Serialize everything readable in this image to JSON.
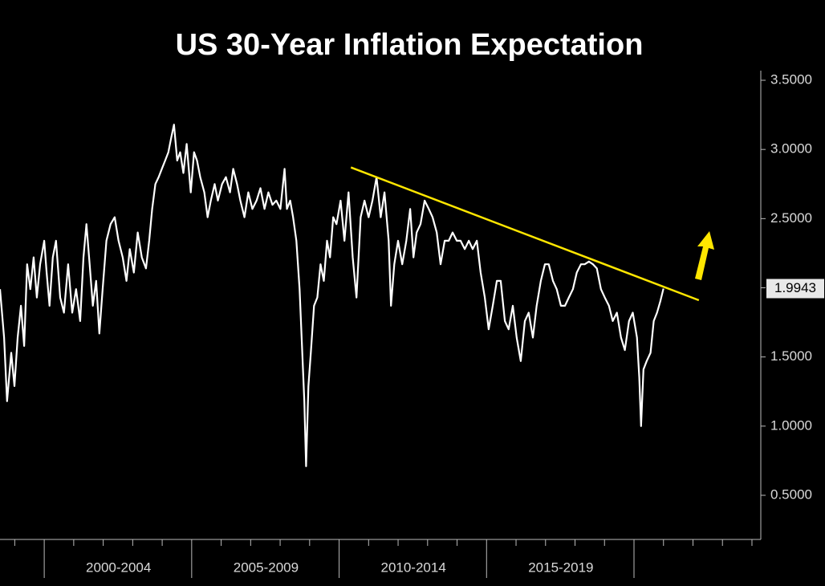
{
  "chart_data": {
    "type": "line",
    "title": "US 30-Year Inflation Expectation",
    "color": "#ffffff",
    "xlim": [
      1998.5,
      2024.3
    ],
    "ylim": [
      0.2,
      3.6
    ],
    "xticks": [
      2000,
      2005,
      2010,
      2015,
      2020
    ],
    "xticks_minor": [
      1999,
      2001,
      2002,
      2003,
      2004,
      2006,
      2007,
      2008,
      2009,
      2011,
      2012,
      2013,
      2014,
      2016,
      2017,
      2018,
      2019,
      2021,
      2022,
      2023,
      2024
    ],
    "period_labels": [
      {
        "value": 2002.52,
        "label": "2000-2004"
      },
      {
        "value": 2007.52,
        "label": "2005-2009"
      },
      {
        "value": 2012.52,
        "label": "2010-2014"
      },
      {
        "value": 2017.52,
        "label": "2015-2019"
      }
    ],
    "yticks": [
      {
        "value": 0.5,
        "label": "0.5000"
      },
      {
        "value": 1,
        "label": "1.0000"
      },
      {
        "value": 1.5,
        "label": "1.5000"
      },
      {
        "value": 2,
        "label": "2.0000"
      },
      {
        "value": 2.5,
        "label": "2.5000"
      },
      {
        "value": 3,
        "label": "3.0000"
      },
      {
        "value": 3.5,
        "label": "3.5000"
      }
    ],
    "x": [
      1998.5,
      1998.64,
      1998.74,
      1998.88,
      1998.99,
      1999.1,
      1999.21,
      1999.32,
      1999.42,
      1999.53,
      1999.64,
      1999.75,
      1999.86,
      2000.0,
      2000.08,
      2000.18,
      2000.29,
      2000.4,
      2000.54,
      2000.67,
      2000.81,
      2000.95,
      2001.08,
      2001.22,
      2001.33,
      2001.43,
      2001.54,
      2001.65,
      2001.76,
      2001.87,
      2001.98,
      2002.11,
      2002.25,
      2002.39,
      2002.52,
      2002.66,
      2002.79,
      2002.9,
      2003.04,
      2003.17,
      2003.31,
      2003.45,
      2003.56,
      2003.66,
      2003.77,
      2003.88,
      2003.99,
      2004.1,
      2004.21,
      2004.31,
      2004.4,
      2004.51,
      2004.61,
      2004.72,
      2004.83,
      2004.97,
      2005.08,
      2005.18,
      2005.29,
      2005.43,
      2005.54,
      2005.65,
      2005.78,
      2005.89,
      2006.03,
      2006.16,
      2006.3,
      2006.41,
      2006.54,
      2006.65,
      2006.79,
      2006.92,
      2007.06,
      2007.2,
      2007.33,
      2007.47,
      2007.6,
      2007.74,
      2007.87,
      2008.01,
      2008.15,
      2008.23,
      2008.34,
      2008.44,
      2008.55,
      2008.66,
      2008.74,
      2008.82,
      2008.88,
      2008.96,
      2009.04,
      2009.15,
      2009.26,
      2009.37,
      2009.48,
      2009.59,
      2009.69,
      2009.8,
      2009.91,
      2010.05,
      2010.18,
      2010.32,
      2010.46,
      2010.59,
      2010.73,
      2010.86,
      2011.0,
      2011.13,
      2011.27,
      2011.41,
      2011.54,
      2011.68,
      2011.76,
      2011.87,
      2012.0,
      2012.14,
      2012.28,
      2012.41,
      2012.52,
      2012.63,
      2012.76,
      2012.9,
      2013.04,
      2013.17,
      2013.31,
      2013.44,
      2013.58,
      2013.72,
      2013.85,
      2013.99,
      2014.12,
      2014.26,
      2014.4,
      2014.53,
      2014.67,
      2014.8,
      2014.94,
      2015.07,
      2015.21,
      2015.35,
      2015.48,
      2015.62,
      2015.75,
      2015.89,
      2016.02,
      2016.16,
      2016.3,
      2016.43,
      2016.57,
      2016.7,
      2016.84,
      2016.98,
      2017.11,
      2017.25,
      2017.38,
      2017.52,
      2017.66,
      2017.79,
      2017.93,
      2018.06,
      2018.2,
      2018.33,
      2018.47,
      2018.61,
      2018.74,
      2018.88,
      2019.01,
      2019.15,
      2019.28,
      2019.42,
      2019.56,
      2019.69,
      2019.83,
      2019.96,
      2020.1,
      2020.18,
      2020.24,
      2020.32,
      2020.43,
      2020.56,
      2020.67,
      2020.78,
      2020.89,
      2021.0
    ],
    "values": [
      1.99,
      1.64,
      1.18,
      1.53,
      1.29,
      1.64,
      1.87,
      1.58,
      2.17,
      1.99,
      2.22,
      1.93,
      2.17,
      2.34,
      2.11,
      1.87,
      2.22,
      2.34,
      1.93,
      1.82,
      2.17,
      1.82,
      1.99,
      1.76,
      2.22,
      2.46,
      2.17,
      1.87,
      2.05,
      1.67,
      1.99,
      2.34,
      2.46,
      2.51,
      2.34,
      2.22,
      2.05,
      2.28,
      2.11,
      2.4,
      2.22,
      2.14,
      2.34,
      2.57,
      2.75,
      2.8,
      2.86,
      2.92,
      2.98,
      3.09,
      3.18,
      2.92,
      2.98,
      2.83,
      3.04,
      2.69,
      2.98,
      2.92,
      2.8,
      2.69,
      2.51,
      2.63,
      2.75,
      2.63,
      2.75,
      2.8,
      2.69,
      2.86,
      2.75,
      2.63,
      2.51,
      2.69,
      2.57,
      2.63,
      2.72,
      2.57,
      2.69,
      2.6,
      2.63,
      2.57,
      2.86,
      2.57,
      2.63,
      2.51,
      2.34,
      1.99,
      1.58,
      1.18,
      0.71,
      1.29,
      1.53,
      1.87,
      1.93,
      2.17,
      2.05,
      2.34,
      2.22,
      2.51,
      2.46,
      2.63,
      2.34,
      2.69,
      2.22,
      1.93,
      2.51,
      2.63,
      2.51,
      2.63,
      2.8,
      2.51,
      2.69,
      2.34,
      1.87,
      2.17,
      2.34,
      2.17,
      2.34,
      2.57,
      2.22,
      2.4,
      2.46,
      2.63,
      2.57,
      2.51,
      2.4,
      2.17,
      2.34,
      2.34,
      2.4,
      2.34,
      2.34,
      2.28,
      2.34,
      2.28,
      2.34,
      2.11,
      1.93,
      1.7,
      1.87,
      2.05,
      2.05,
      1.76,
      1.7,
      1.87,
      1.64,
      1.47,
      1.76,
      1.82,
      1.64,
      1.87,
      2.05,
      2.17,
      2.17,
      2.05,
      1.99,
      1.87,
      1.87,
      1.93,
      1.99,
      2.11,
      2.17,
      2.17,
      2.19,
      2.17,
      2.14,
      1.99,
      1.93,
      1.87,
      1.76,
      1.82,
      1.64,
      1.55,
      1.76,
      1.82,
      1.64,
      1.35,
      1.0,
      1.41,
      1.47,
      1.53,
      1.76,
      1.82,
      1.9,
      1.9943
    ],
    "trendline": {
      "x": [
        2010.4,
        2022.2
      ],
      "y": [
        2.87,
        1.91
      ],
      "color": "#ffe600"
    }
  }
}
